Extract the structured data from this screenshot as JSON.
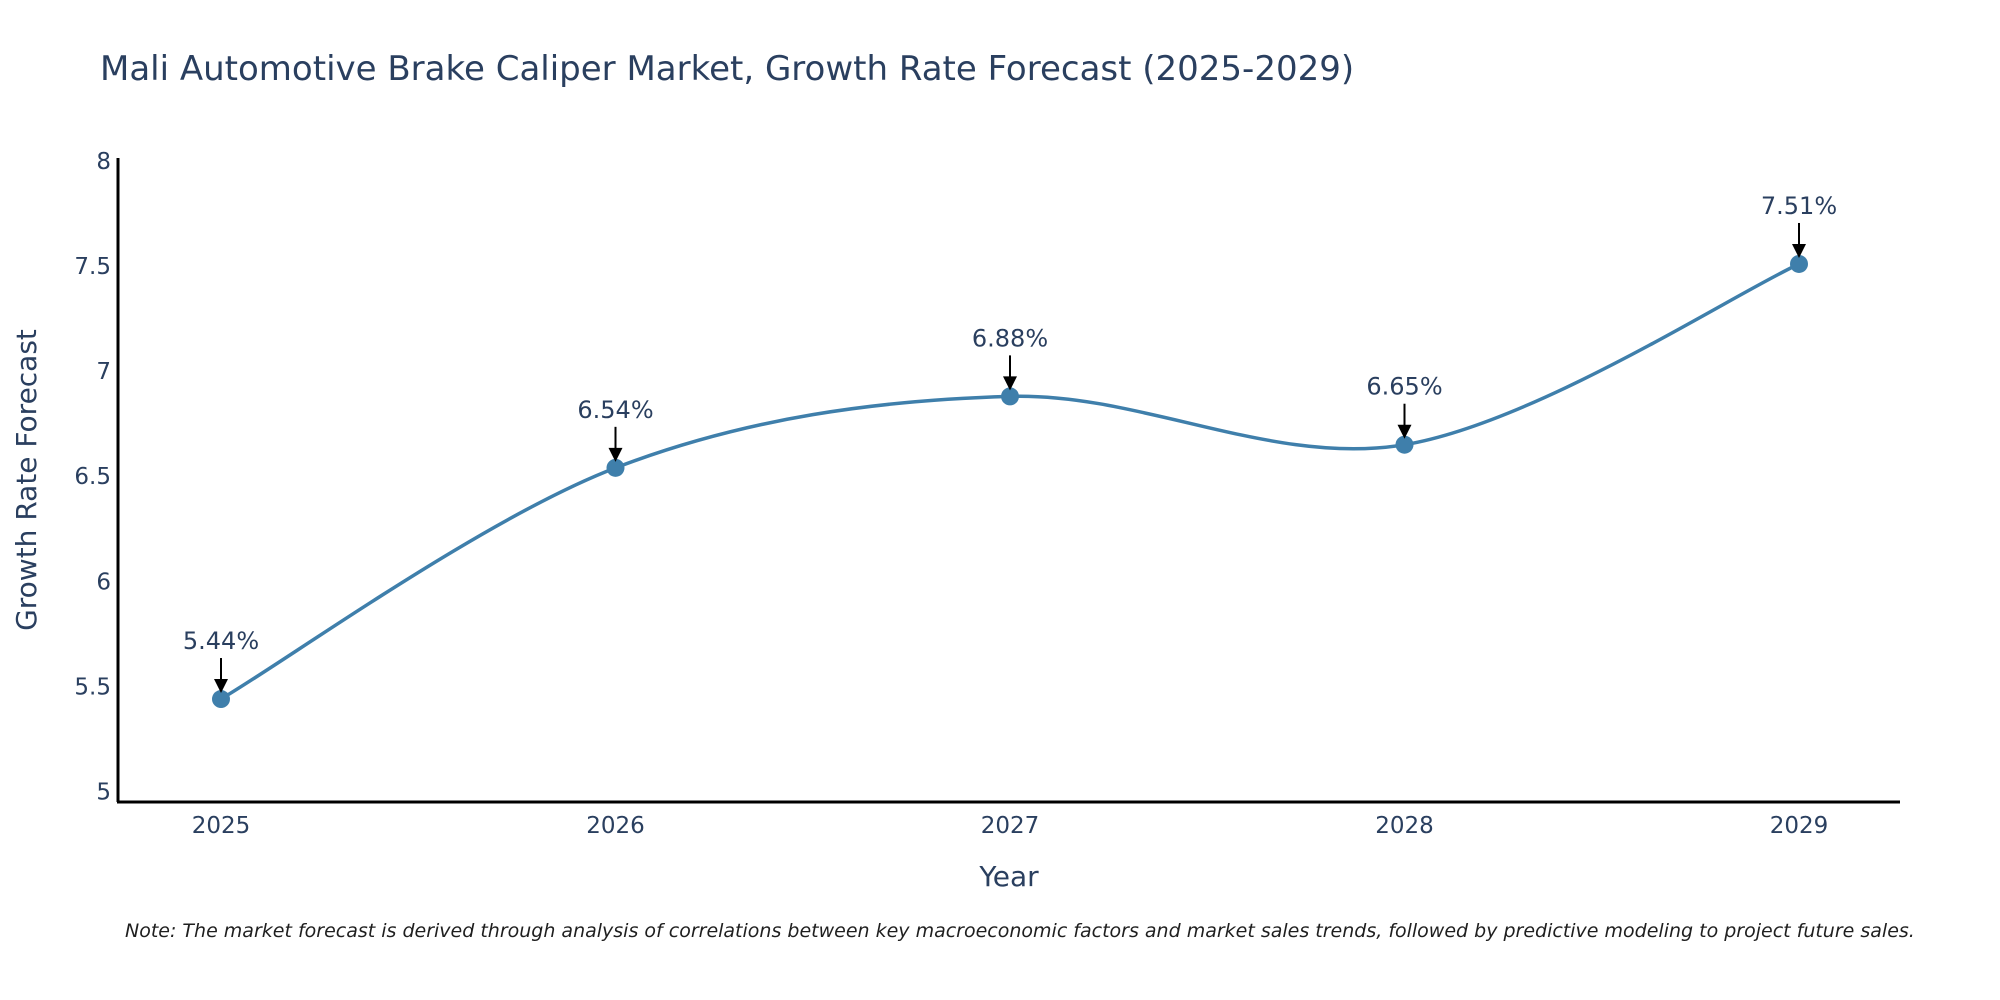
{
  "chart_data": {
    "type": "line",
    "title": "Mali Automotive Brake Caliper Market, Growth Rate Forecast (2025-2029)",
    "xlabel": "Year",
    "ylabel": "Growth Rate Forecast",
    "categories": [
      "2025",
      "2026",
      "2027",
      "2028",
      "2029"
    ],
    "series": [
      {
        "name": "Growth Rate Forecast",
        "values": [
          5.44,
          6.54,
          6.88,
          6.65,
          7.51
        ]
      }
    ],
    "data_labels": [
      "5.44%",
      "6.54%",
      "6.88%",
      "6.65%",
      "7.51%"
    ],
    "y_ticks": [
      "5",
      "5.5",
      "6",
      "6.5",
      "7",
      "7.5",
      "8"
    ],
    "y_tick_values": [
      5,
      5.5,
      6,
      6.5,
      7,
      7.5,
      8
    ],
    "ylim": [
      4.95,
      8
    ],
    "grid": false,
    "line_color": "#3f7fab",
    "marker_color": "#3f7fab"
  },
  "note": "Note: The market forecast is derived through analysis of correlations between key macroeconomic factors and market sales trends, followed by predictive modeling to project future sales."
}
